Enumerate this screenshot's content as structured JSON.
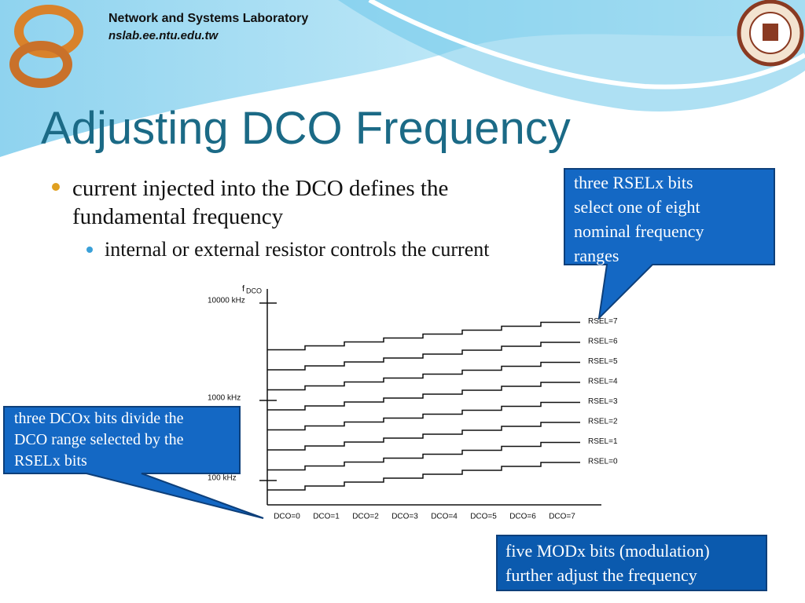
{
  "header": {
    "lab": "Network and Systems Laboratory",
    "url": "nslab.ee.ntu.edu.tw"
  },
  "title": "Adjusting DCO Frequency",
  "bullets": [
    "current injected into the DCO defines the fundamental frequency"
  ],
  "sub_bullets": [
    "internal or external resistor controls the current"
  ],
  "diagram": {
    "y_label": "f",
    "y_label_sub": "DCO",
    "y_ticks": [
      "10000 kHz",
      "1000 kHz",
      "100 kHz"
    ],
    "x_labels": [
      "DCO=0",
      "DCO=1",
      "DCO=2",
      "DCO=3",
      "DCO=4",
      "DCO=5",
      "DCO=6",
      "DCO=7"
    ],
    "series_labels": [
      "RSEL=0",
      "RSEL=1",
      "RSEL=2",
      "RSEL=3",
      "RSEL=4",
      "RSEL=5",
      "RSEL=6",
      "RSEL=7"
    ]
  },
  "callouts": {
    "rsel": [
      "three RSELx bits",
      "select one of eight",
      "nominal frequency",
      "ranges"
    ],
    "dco": [
      "three DCOx bits divide the",
      "DCO range selected by the",
      "RSELx bits"
    ],
    "mod": [
      "five MODx bits (modulation)",
      "further  adjust the frequency"
    ]
  }
}
